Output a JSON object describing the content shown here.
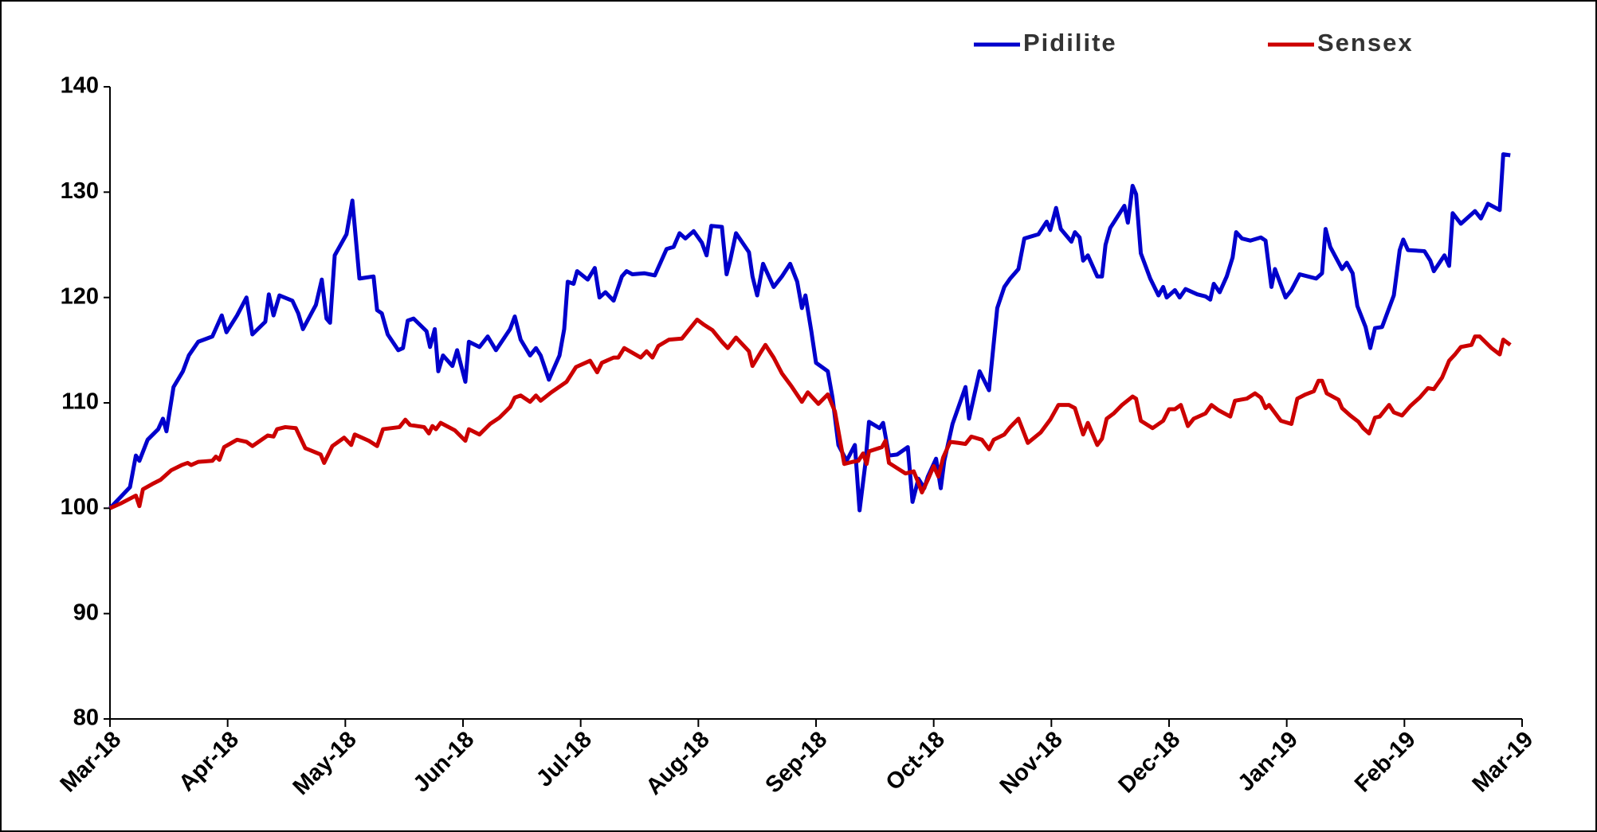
{
  "chart_data": {
    "type": "line",
    "xlim": [
      0,
      12
    ],
    "xticks": [
      {
        "value": 0,
        "label": "Mar-18"
      },
      {
        "value": 1,
        "label": "Apr-18"
      },
      {
        "value": 2,
        "label": "May-18"
      },
      {
        "value": 3,
        "label": "Jun-18"
      },
      {
        "value": 4,
        "label": "Jul-18"
      },
      {
        "value": 5,
        "label": "Aug-18"
      },
      {
        "value": 6,
        "label": "Sep-18"
      },
      {
        "value": 7,
        "label": "Oct-18"
      },
      {
        "value": 8,
        "label": "Nov-18"
      },
      {
        "value": 9,
        "label": "Dec-18"
      },
      {
        "value": 10,
        "label": "Jan-19"
      },
      {
        "value": 11,
        "label": "Feb-19"
      },
      {
        "value": 12,
        "label": "Mar-19"
      }
    ],
    "ylim": [
      80,
      140
    ],
    "yticks": [
      80,
      90,
      100,
      110,
      120,
      130,
      140
    ],
    "grid": false,
    "legend": "top",
    "series": [
      {
        "name": "Pidilite",
        "color": "#0000cc",
        "x": [
          0,
          0.17,
          0.22,
          0.25,
          0.32,
          0.41,
          0.45,
          0.48,
          0.54,
          0.62,
          0.67,
          0.75,
          0.87,
          0.95,
          0.99,
          1.08,
          1.16,
          1.21,
          1.32,
          1.35,
          1.39,
          1.44,
          1.55,
          1.6,
          1.64,
          1.75,
          1.8,
          1.84,
          1.87,
          1.91,
          2.01,
          2.06,
          2.12,
          2.24,
          2.27,
          2.31,
          2.36,
          2.45,
          2.49,
          2.53,
          2.58,
          2.69,
          2.72,
          2.76,
          2.79,
          2.83,
          2.91,
          2.95,
          3.02,
          3.05,
          3.14,
          3.21,
          3.28,
          3.4,
          3.44,
          3.49,
          3.57,
          3.62,
          3.66,
          3.73,
          3.82,
          3.86,
          3.89,
          3.94,
          3.97,
          4.06,
          4.12,
          4.16,
          4.21,
          4.28,
          4.35,
          4.39,
          4.44,
          4.54,
          4.63,
          4.73,
          4.79,
          4.84,
          4.89,
          4.96,
          5.03,
          5.07,
          5.11,
          5.2,
          5.24,
          5.27,
          5.32,
          5.43,
          5.46,
          5.5,
          5.55,
          5.64,
          5.71,
          5.78,
          5.84,
          5.88,
          5.91,
          5.96,
          6.0,
          6.1,
          6.14,
          6.19,
          6.26,
          6.33,
          6.37,
          6.42,
          6.45,
          6.54,
          6.57,
          6.62,
          6.69,
          6.78,
          6.82,
          6.87,
          6.92,
          6.95,
          7.02,
          7.06,
          7.09,
          7.16,
          7.27,
          7.3,
          7.39,
          7.47,
          7.54,
          7.6,
          7.65,
          7.72,
          7.77,
          7.89,
          7.96,
          7.99,
          8.04,
          8.08,
          8.17,
          8.2,
          8.24,
          8.27,
          8.31,
          8.39,
          8.43,
          8.46,
          8.5,
          8.62,
          8.65,
          8.69,
          8.72,
          8.76,
          8.84,
          8.91,
          8.95,
          8.98,
          9.05,
          9.09,
          9.14,
          9.24,
          9.31,
          9.35,
          9.38,
          9.43,
          9.49,
          9.54,
          9.57,
          9.62,
          9.69,
          9.78,
          9.82,
          9.87,
          9.9,
          9.99,
          10.04,
          10.11,
          10.25,
          10.3,
          10.33,
          10.37,
          10.47,
          10.51,
          10.56,
          10.6,
          10.67,
          10.71,
          10.75,
          10.81,
          10.91,
          10.96,
          10.99,
          11.03,
          11.17,
          11.22,
          11.25,
          11.34,
          11.38,
          11.41,
          11.48,
          11.6,
          11.65,
          11.71,
          11.81,
          11.84,
          11.9
        ],
        "values": [
          100,
          102,
          105,
          104.5,
          106.5,
          107.5,
          108.5,
          107.3,
          111.5,
          113,
          114.5,
          115.8,
          116.3,
          118.3,
          116.7,
          118.3,
          120,
          116.5,
          117.7,
          120.3,
          118.3,
          120.2,
          119.7,
          118.5,
          117,
          119.3,
          121.7,
          118,
          117.6,
          124,
          126,
          129.2,
          121.8,
          122,
          118.8,
          118.5,
          116.5,
          115,
          115.2,
          117.8,
          118,
          116.8,
          115.3,
          117,
          113,
          114.5,
          113.5,
          115,
          112,
          115.8,
          115.3,
          116.3,
          115,
          117,
          118.2,
          116,
          114.5,
          115.2,
          114.5,
          112.2,
          114.5,
          117,
          121.5,
          121.3,
          122.5,
          121.7,
          122.8,
          120,
          120.5,
          119.7,
          122,
          122.5,
          122.2,
          122.3,
          122.1,
          124.6,
          124.8,
          126.1,
          125.6,
          126.3,
          125.2,
          124,
          126.8,
          126.7,
          122.2,
          123.5,
          126.1,
          124.3,
          122,
          120.2,
          123.2,
          121,
          122,
          123.2,
          121.5,
          119,
          120.2,
          116.8,
          113.8,
          113,
          110.5,
          106,
          104.5,
          106,
          99.8,
          104.3,
          108.2,
          107.6,
          108.1,
          105,
          105.1,
          105.8,
          100.6,
          102.8,
          101.9,
          103,
          104.7,
          101.9,
          104.5,
          108,
          111.5,
          108.5,
          113,
          111.2,
          119,
          121,
          121.8,
          122.7,
          125.6,
          126,
          127.2,
          126.4,
          128.5,
          126.5,
          125.3,
          126.2,
          125.7,
          123.5,
          124,
          122,
          122,
          125,
          126.6,
          128.7,
          127.1,
          130.6,
          129.8,
          124.2,
          121.8,
          120.2,
          121,
          120,
          120.7,
          120,
          120.8,
          120.3,
          120.1,
          119.8,
          121.3,
          120.5,
          122,
          123.8,
          126.2,
          125.6,
          125.4,
          125.7,
          125.4,
          121,
          122.7,
          120,
          120.7,
          122.2,
          121.8,
          122.3,
          126.5,
          124.8,
          122.7,
          123.3,
          122.3,
          119.2,
          117.2,
          115.2,
          117.1,
          117.2,
          120.2,
          124.5,
          125.5,
          124.5,
          124.4,
          123.5,
          122.5,
          124,
          123,
          128,
          127,
          128.2,
          127.5,
          128.9,
          128.3,
          133.6,
          133.5
        ]
      },
      {
        "name": "Sensex",
        "color": "#cc0000",
        "x": [
          0,
          0.1,
          0.22,
          0.25,
          0.28,
          0.36,
          0.43,
          0.52,
          0.61,
          0.66,
          0.69,
          0.75,
          0.87,
          0.9,
          0.93,
          0.97,
          1.08,
          1.16,
          1.21,
          1.34,
          1.39,
          1.42,
          1.49,
          1.58,
          1.66,
          1.79,
          1.82,
          1.89,
          1.99,
          2.05,
          2.08,
          2.2,
          2.27,
          2.32,
          2.46,
          2.51,
          2.55,
          2.67,
          2.71,
          2.74,
          2.77,
          2.81,
          2.93,
          3.02,
          3.05,
          3.14,
          3.23,
          3.31,
          3.4,
          3.44,
          3.49,
          3.57,
          3.62,
          3.66,
          3.75,
          3.88,
          3.96,
          4.08,
          4.14,
          4.18,
          4.28,
          4.32,
          4.37,
          4.51,
          4.56,
          4.61,
          4.66,
          4.75,
          4.86,
          4.91,
          4.99,
          5.05,
          5.12,
          5.2,
          5.25,
          5.32,
          5.43,
          5.46,
          5.53,
          5.57,
          5.64,
          5.71,
          5.79,
          5.88,
          5.93,
          6.02,
          6.1,
          6.16,
          6.24,
          6.31,
          6.36,
          6.4,
          6.43,
          6.45,
          6.56,
          6.59,
          6.62,
          6.69,
          6.76,
          6.83,
          6.87,
          6.9,
          6.95,
          7.0,
          7.04,
          7.08,
          7.14,
          7.21,
          7.27,
          7.32,
          7.41,
          7.47,
          7.51,
          7.6,
          7.65,
          7.72,
          7.8,
          7.91,
          7.99,
          8.06,
          8.15,
          8.2,
          8.27,
          8.31,
          8.39,
          8.43,
          8.47,
          8.53,
          8.6,
          8.69,
          8.72,
          8.76,
          8.86,
          8.95,
          9.0,
          9.05,
          9.1,
          9.16,
          9.21,
          9.31,
          9.36,
          9.42,
          9.52,
          9.56,
          9.66,
          9.73,
          9.78,
          9.82,
          9.85,
          9.95,
          10.04,
          10.09,
          10.16,
          10.23,
          10.27,
          10.3,
          10.34,
          10.44,
          10.47,
          10.54,
          10.61,
          10.65,
          10.7,
          10.75,
          10.79,
          10.84,
          10.87,
          10.91,
          10.98,
          11.05,
          11.13,
          11.2,
          11.25,
          11.32,
          11.38,
          11.43,
          11.48,
          11.57,
          11.6,
          11.64,
          11.74,
          11.81,
          11.84,
          11.9
        ],
        "values": [
          100,
          100.5,
          101.2,
          100.2,
          101.8,
          102.3,
          102.7,
          103.6,
          104.1,
          104.3,
          104.1,
          104.4,
          104.5,
          104.9,
          104.6,
          105.8,
          106.5,
          106.3,
          105.9,
          106.9,
          106.8,
          107.5,
          107.7,
          107.6,
          105.7,
          105.1,
          104.3,
          105.9,
          106.7,
          106,
          107,
          106.4,
          105.9,
          107.5,
          107.7,
          108.4,
          107.9,
          107.7,
          107.1,
          107.8,
          107.5,
          108.1,
          107.4,
          106.4,
          107.5,
          107,
          108,
          108.6,
          109.6,
          110.5,
          110.7,
          110.1,
          110.7,
          110.2,
          111,
          112,
          113.4,
          114,
          112.9,
          113.8,
          114.3,
          114.3,
          115.2,
          114.3,
          114.9,
          114.3,
          115.4,
          116,
          116.1,
          116.8,
          117.9,
          117.4,
          116.9,
          115.8,
          115.2,
          116.2,
          114.9,
          113.5,
          114.8,
          115.5,
          114.3,
          112.8,
          111.6,
          110.1,
          111,
          109.9,
          110.8,
          109.2,
          104.2,
          104.4,
          104.5,
          105.2,
          104.2,
          105.4,
          105.8,
          106.4,
          104.3,
          103.8,
          103.3,
          103.5,
          102.4,
          101.5,
          102.7,
          104,
          103,
          104.8,
          106.3,
          106.2,
          106.1,
          106.8,
          106.5,
          105.6,
          106.5,
          107,
          107.7,
          108.5,
          106.2,
          107.2,
          108.4,
          109.8,
          109.8,
          109.5,
          107,
          108.1,
          106,
          106.6,
          108.5,
          109,
          109.8,
          110.6,
          110.4,
          108.3,
          107.6,
          108.3,
          109.4,
          109.4,
          109.8,
          107.8,
          108.5,
          109,
          109.8,
          109.3,
          108.7,
          110.2,
          110.4,
          110.9,
          110.5,
          109.5,
          109.8,
          108.3,
          108,
          110.4,
          110.8,
          111.1,
          112.1,
          112.1,
          110.9,
          110.3,
          109.5,
          108.8,
          108.2,
          107.6,
          107.1,
          108.6,
          108.7,
          109.4,
          109.8,
          109.1,
          108.8,
          109.7,
          110.5,
          111.4,
          111.3,
          112.4,
          114,
          114.6,
          115.3,
          115.5,
          116.3,
          116.3,
          115.2,
          114.6,
          116,
          115.5
        ]
      }
    ]
  }
}
